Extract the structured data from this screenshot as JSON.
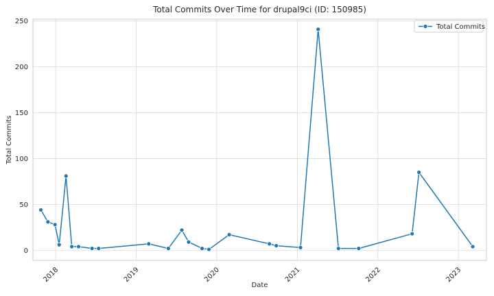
{
  "chart_data": {
    "type": "line",
    "title": "Total Commits Over Time for drupal9ci (ID: 150985)",
    "xlabel": "Date",
    "ylabel": "Total Commits",
    "x_ticks": [
      "2018",
      "2019",
      "2020",
      "2021",
      "2022",
      "2023"
    ],
    "y_ticks": [
      0,
      50,
      100,
      150,
      200,
      250
    ],
    "xlim": [
      "2017-09-20",
      "2023-05-08"
    ],
    "ylim": [
      -11,
      252
    ],
    "grid": true,
    "legend": "top-right",
    "series": [
      {
        "name": "Total Commits",
        "color": "#1f77b4",
        "marker": "circle",
        "points": [
          {
            "x": "2017-10-26",
            "y": 44
          },
          {
            "x": "2017-11-27",
            "y": 31
          },
          {
            "x": "2017-12-29",
            "y": 28
          },
          {
            "x": "2018-01-17",
            "y": 6
          },
          {
            "x": "2018-02-17",
            "y": 81
          },
          {
            "x": "2018-03-15",
            "y": 4
          },
          {
            "x": "2018-04-15",
            "y": 4
          },
          {
            "x": "2018-06-15",
            "y": 2
          },
          {
            "x": "2018-07-15",
            "y": 2
          },
          {
            "x": "2019-02-27",
            "y": 7
          },
          {
            "x": "2019-05-27",
            "y": 2
          },
          {
            "x": "2019-07-27",
            "y": 22
          },
          {
            "x": "2019-08-27",
            "y": 9
          },
          {
            "x": "2019-10-27",
            "y": 2
          },
          {
            "x": "2019-11-27",
            "y": 1
          },
          {
            "x": "2020-02-27",
            "y": 17
          },
          {
            "x": "2020-08-27",
            "y": 7
          },
          {
            "x": "2020-09-27",
            "y": 5
          },
          {
            "x": "2021-01-15",
            "y": 3
          },
          {
            "x": "2021-04-05",
            "y": 241
          },
          {
            "x": "2021-07-06",
            "y": 2
          },
          {
            "x": "2021-10-06",
            "y": 2
          },
          {
            "x": "2022-06-05",
            "y": 18
          },
          {
            "x": "2022-07-06",
            "y": 85
          },
          {
            "x": "2023-03-07",
            "y": 4
          }
        ]
      }
    ]
  }
}
